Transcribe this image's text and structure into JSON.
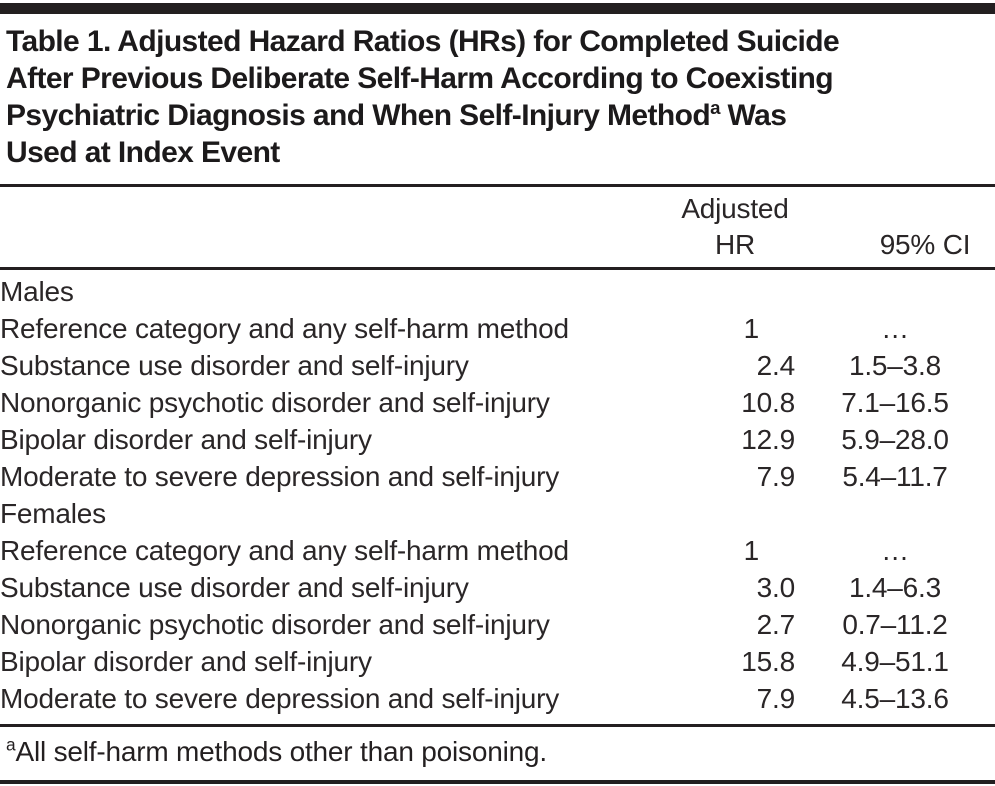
{
  "table": {
    "title": {
      "line1": "Table 1. Adjusted Hazard Ratios (HRs) for Completed Suicide",
      "line2": "After Previous Deliberate Self-Harm According to Coexisting",
      "line3_pre": "Psychiatric Diagnosis and When Self-Injury Method",
      "line3_sup": "a",
      "line3_post": " Was",
      "line4": "Used at Index Event"
    },
    "columns": {
      "hr_line1": "Adjusted",
      "hr_line2": "HR",
      "ci": "95% CI"
    },
    "sections": [
      {
        "label": "Males",
        "rows": [
          {
            "label": "Reference category and any self-harm method",
            "hr": "1",
            "ci": "…"
          },
          {
            "label": "Substance use disorder and self-injury",
            "hr": "2.4",
            "ci": "1.5–3.8"
          },
          {
            "label": "Nonorganic psychotic disorder and self-injury",
            "hr": "10.8",
            "ci": "7.1–16.5"
          },
          {
            "label": "Bipolar disorder and self-injury",
            "hr": "12.9",
            "ci": "5.9–28.0"
          },
          {
            "label": "Moderate to severe depression and self-injury",
            "hr": "7.9",
            "ci": "5.4–11.7"
          }
        ]
      },
      {
        "label": "Females",
        "rows": [
          {
            "label": "Reference category and any self-harm method",
            "hr": "1",
            "ci": "…"
          },
          {
            "label": "Substance use disorder and self-injury",
            "hr": "3.0",
            "ci": "1.4–6.3"
          },
          {
            "label": "Nonorganic psychotic disorder and self-injury",
            "hr": "2.7",
            "ci": "0.7–11.2"
          },
          {
            "label": "Bipolar disorder and self-injury",
            "hr": "15.8",
            "ci": "4.9–51.1"
          },
          {
            "label": "Moderate to severe depression and self-injury",
            "hr": "7.9",
            "ci": "4.5–13.6"
          }
        ]
      }
    ],
    "footnote": {
      "marker": "a",
      "text": "All self-harm methods other than poisoning."
    }
  },
  "colors": {
    "text": "#231f20",
    "rule": "#231f20",
    "background": "#ffffff"
  }
}
